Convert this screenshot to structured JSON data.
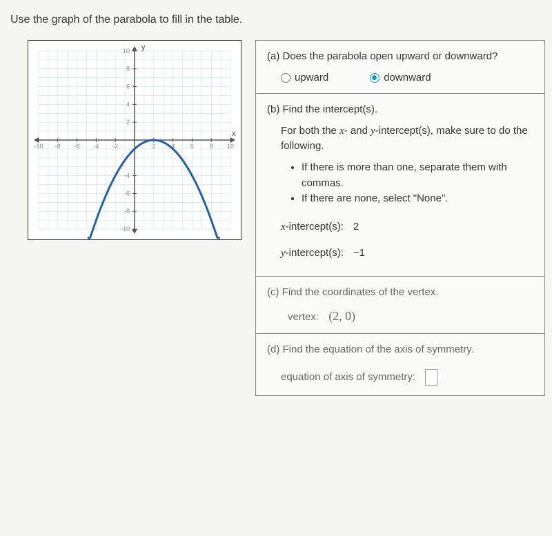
{
  "instruction": "Use the graph of the parabola to fill in the table.",
  "graph": {
    "xmin": -10,
    "xmax": 10,
    "ymin": -10,
    "ymax": 10,
    "tick_step": 2,
    "grid_color": "#cfe8ea",
    "axis_color": "#555",
    "curve_color": "#1f5fb0",
    "curve_width": 3,
    "background": "#ffffff",
    "arrow_color": "#555",
    "y_label": "y",
    "x_label": "x",
    "axis_ticks_x": [
      -10,
      -8,
      -6,
      -4,
      -2,
      2,
      4,
      6,
      8,
      10
    ],
    "axis_ticks_y": [
      -10,
      -8,
      -6,
      -4,
      2,
      4,
      6,
      8,
      10
    ],
    "parabola_vertex": [
      2,
      0
    ],
    "parabola_coef": -0.25,
    "tick_label_color": "#888",
    "tick_fontsize": 9
  },
  "parts": {
    "a": {
      "question": "(a) Does the parabola open upward or downward?",
      "options": {
        "upward": "upward",
        "downward": "downward"
      },
      "selected": "downward"
    },
    "b": {
      "question": "(b) Find the intercept(s).",
      "sub": "For both the x- and y-intercept(s), make sure to do the following.",
      "bullet1": "If there is more than one, separate them with commas.",
      "bullet2": "If there are none, select \"None\".",
      "x_label": "x-intercept(s):",
      "x_val": "2",
      "y_label": "y-intercept(s):",
      "y_val": "−1"
    },
    "c": {
      "question": "(c) Find the coordinates of the vertex.",
      "label": "vertex:",
      "value": "(2, 0)"
    },
    "d": {
      "question": "(d) Find the equation of the axis of symmetry.",
      "label": "equation of axis of symmetry:"
    }
  }
}
